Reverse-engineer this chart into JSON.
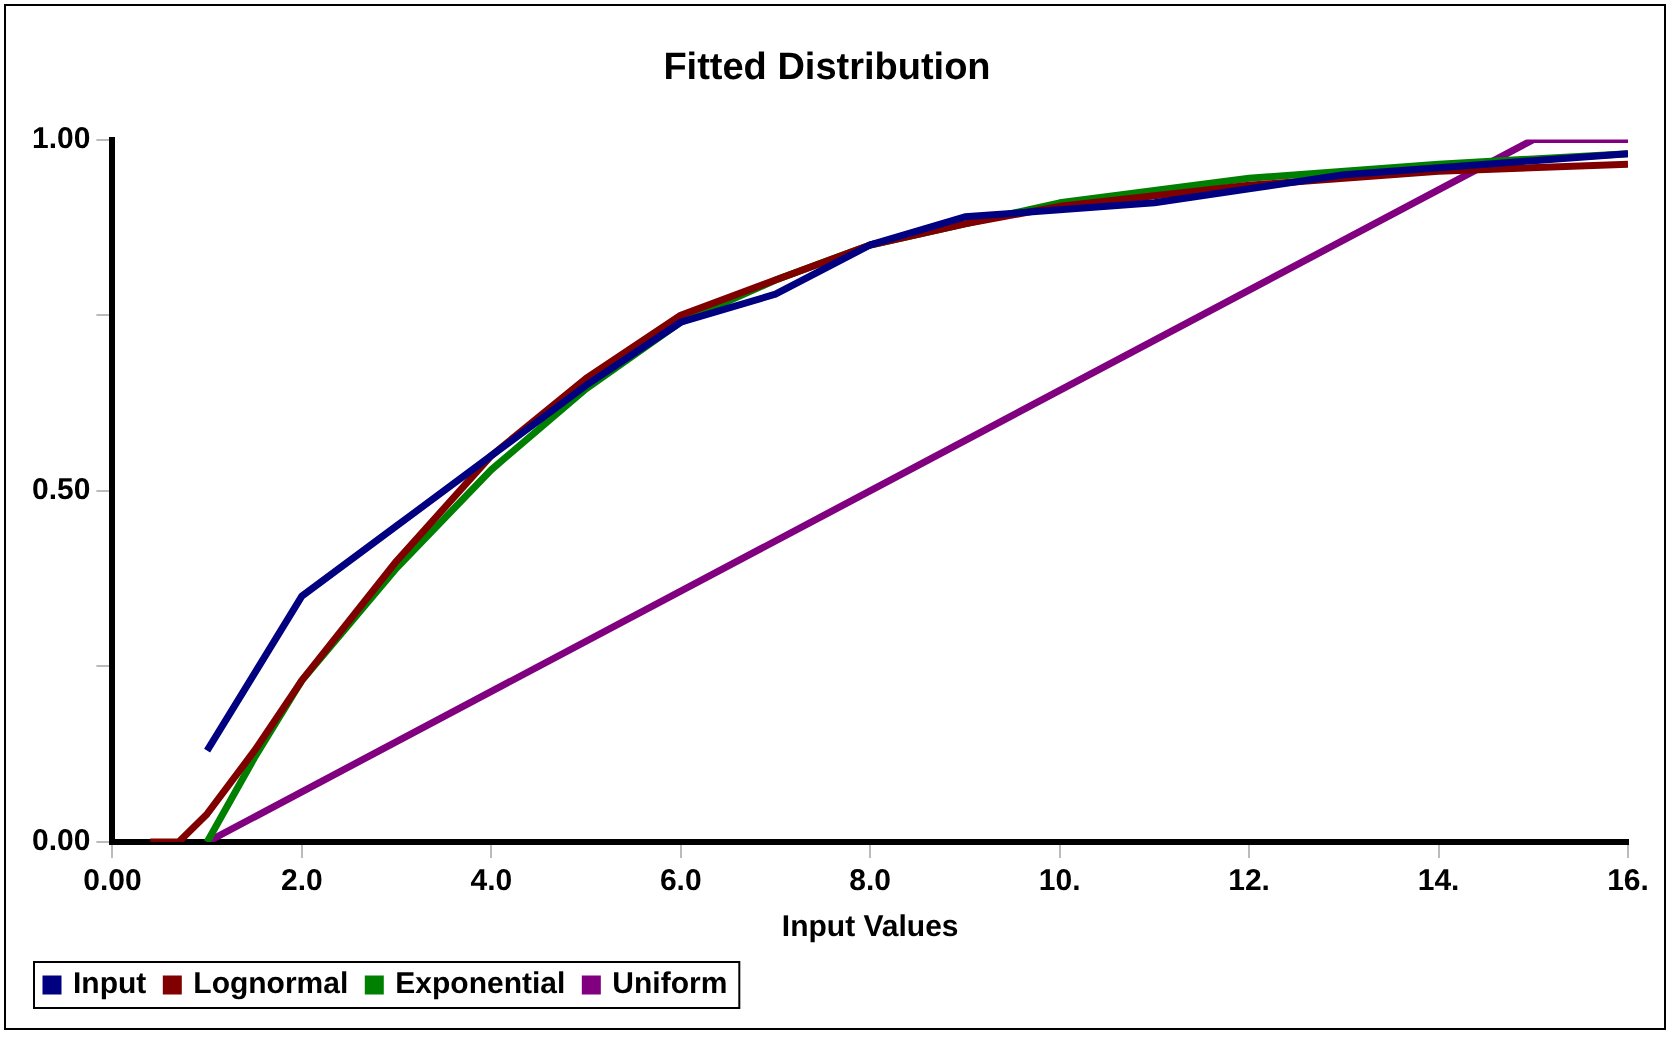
{
  "chart_data": {
    "type": "line",
    "title": "Fitted Distribution",
    "xlabel": "Input Values",
    "xlim": [
      0,
      16
    ],
    "xticks": [
      {
        "value": 0,
        "label": "0.00"
      },
      {
        "value": 2,
        "label": "2.0"
      },
      {
        "value": 4,
        "label": "4.0"
      },
      {
        "value": 6,
        "label": "6.0"
      },
      {
        "value": 8,
        "label": "8.0"
      },
      {
        "value": 10,
        "label": "10."
      },
      {
        "value": 12,
        "label": "12."
      },
      {
        "value": 14,
        "label": "14."
      },
      {
        "value": 16,
        "label": "16."
      }
    ],
    "ylim": [
      0,
      1
    ],
    "yticks": [
      {
        "value": 0,
        "label": "0.00"
      },
      {
        "value": 0.25,
        "label": null
      },
      {
        "value": 0.5,
        "label": "0.50"
      },
      {
        "value": 0.75,
        "label": null
      },
      {
        "value": 1,
        "label": "1.00"
      }
    ],
    "grid": false,
    "legend": "bottom left",
    "marker": "none",
    "line_style": "solid",
    "series": [
      {
        "name": "Input",
        "color": "#000080",
        "x": [
          1,
          2,
          3,
          4,
          5,
          6,
          7,
          8,
          9,
          10,
          11,
          12,
          13,
          14,
          15,
          16
        ],
        "values": [
          0.13,
          0.35,
          0.45,
          0.55,
          0.65,
          0.74,
          0.78,
          0.85,
          0.89,
          0.9,
          0.91,
          0.93,
          0.95,
          0.96,
          0.97,
          0.98
        ]
      },
      {
        "name": "Lognormal",
        "color": "#800000",
        "x": [
          0.4,
          0.7,
          1,
          1.5,
          2,
          3,
          4,
          5,
          6,
          7,
          8,
          9,
          10,
          12,
          14,
          16
        ],
        "values": [
          0,
          0,
          0.04,
          0.13,
          0.23,
          0.4,
          0.55,
          0.66,
          0.75,
          0.8,
          0.85,
          0.88,
          0.905,
          0.935,
          0.955,
          0.965
        ]
      },
      {
        "name": "Exponential",
        "color": "#008000",
        "x": [
          1,
          1.5,
          2,
          3,
          4,
          5,
          6,
          7,
          8,
          9,
          10,
          12,
          14,
          16
        ],
        "values": [
          0,
          0.12,
          0.23,
          0.39,
          0.53,
          0.645,
          0.74,
          0.8,
          0.85,
          0.88,
          0.91,
          0.945,
          0.965,
          0.98
        ]
      },
      {
        "name": "Uniform",
        "color": "#800080",
        "x": [
          1,
          15,
          16
        ],
        "values": [
          0,
          1,
          1
        ]
      }
    ]
  }
}
